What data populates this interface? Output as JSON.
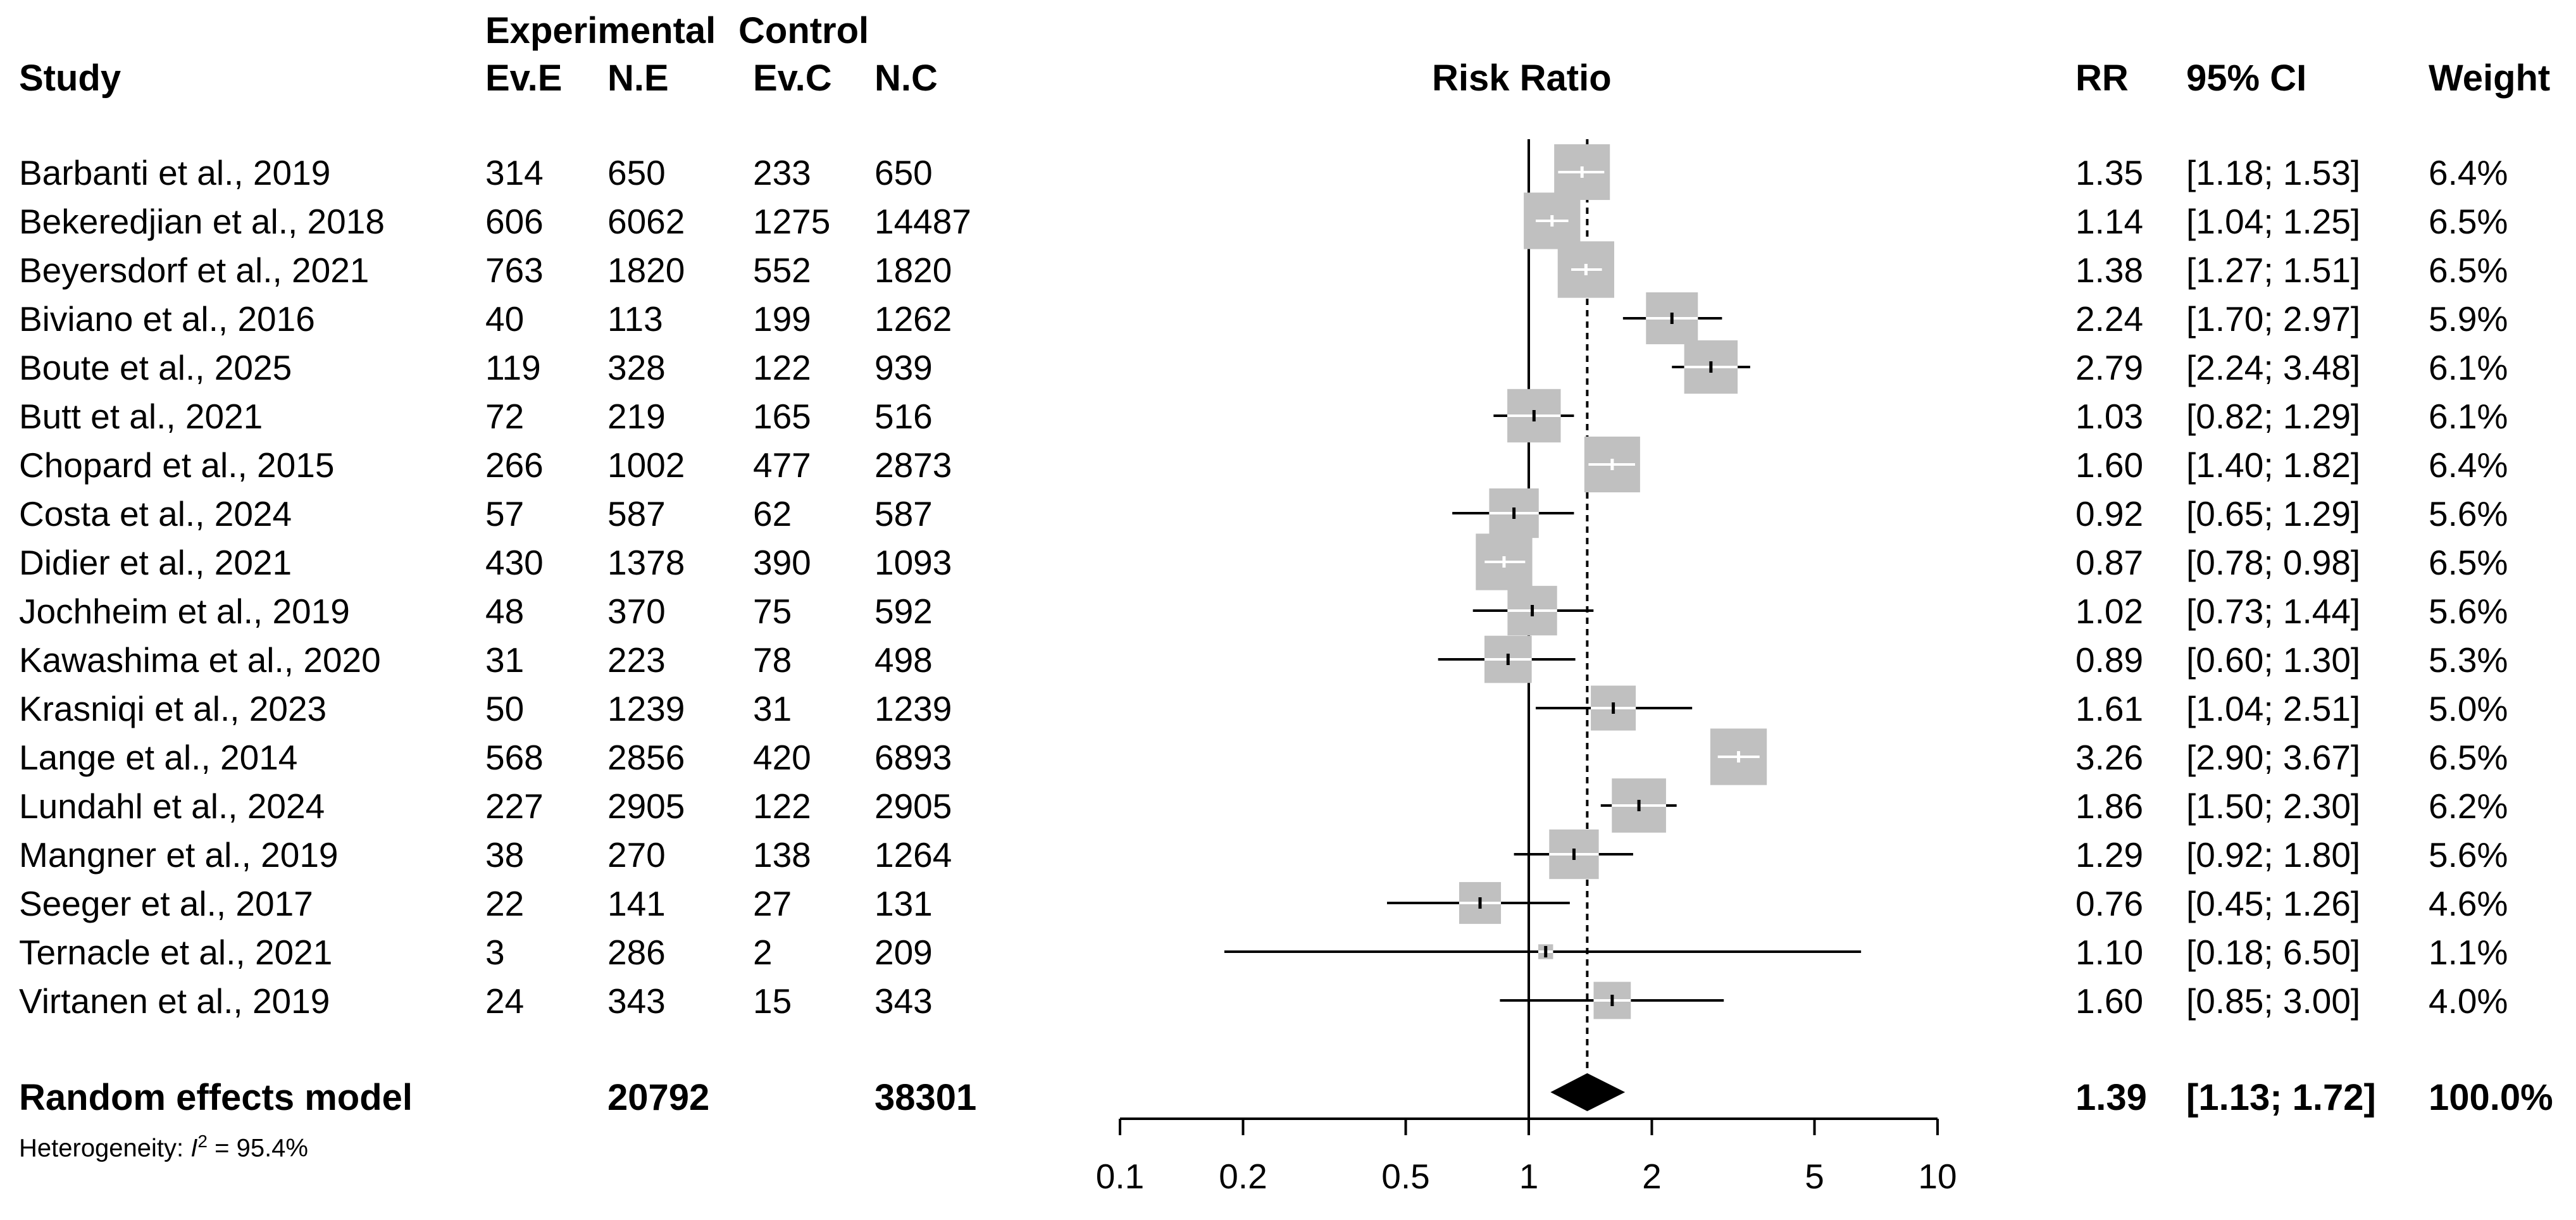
{
  "chart_data": {
    "type": "forest",
    "title": "Risk Ratio",
    "header": {
      "group_experimental": "Experimental",
      "group_control": "Control",
      "study": "Study",
      "ev_e": "Ev.E",
      "n_e": "N.E",
      "ev_c": "Ev.C",
      "n_c": "N.C",
      "rr": "RR",
      "ci": "95% CI",
      "weight": "Weight"
    },
    "xscale": "log",
    "xlim": [
      0.1,
      10
    ],
    "xticks": [
      0.1,
      0.2,
      0.5,
      1,
      2,
      5,
      10
    ],
    "xtick_labels": [
      "0.1",
      "0.2",
      "0.5",
      "1",
      "2",
      "5",
      "10"
    ],
    "reference_line": 1,
    "pooled_line": 1.39,
    "studies": [
      {
        "study": "Barbanti et al., 2019",
        "ev_e": "314",
        "n_e": "650",
        "ev_c": "233",
        "n_c": "650",
        "rr": 1.35,
        "lower": 1.18,
        "upper": 1.53,
        "weight": 6.4,
        "rr_text": "1.35",
        "ci_text": "[1.18; 1.53]",
        "weight_text": "6.4%"
      },
      {
        "study": "Bekeredjian et al., 2018",
        "ev_e": "606",
        "n_e": "6062",
        "ev_c": "1275",
        "n_c": "14487",
        "rr": 1.14,
        "lower": 1.04,
        "upper": 1.25,
        "weight": 6.5,
        "rr_text": "1.14",
        "ci_text": "[1.04; 1.25]",
        "weight_text": "6.5%"
      },
      {
        "study": "Beyersdorf et al., 2021",
        "ev_e": "763",
        "n_e": "1820",
        "ev_c": "552",
        "n_c": "1820",
        "rr": 1.38,
        "lower": 1.27,
        "upper": 1.51,
        "weight": 6.5,
        "rr_text": "1.38",
        "ci_text": "[1.27; 1.51]",
        "weight_text": "6.5%"
      },
      {
        "study": "Biviano et al., 2016",
        "ev_e": "40",
        "n_e": "113",
        "ev_c": "199",
        "n_c": "1262",
        "rr": 2.24,
        "lower": 1.7,
        "upper": 2.97,
        "weight": 5.9,
        "rr_text": "2.24",
        "ci_text": "[1.70; 2.97]",
        "weight_text": "5.9%"
      },
      {
        "study": "Boute et al., 2025",
        "ev_e": "119",
        "n_e": "328",
        "ev_c": "122",
        "n_c": "939",
        "rr": 2.79,
        "lower": 2.24,
        "upper": 3.48,
        "weight": 6.1,
        "rr_text": "2.79",
        "ci_text": "[2.24; 3.48]",
        "weight_text": "6.1%"
      },
      {
        "study": "Butt et al., 2021",
        "ev_e": "72",
        "n_e": "219",
        "ev_c": "165",
        "n_c": "516",
        "rr": 1.03,
        "lower": 0.82,
        "upper": 1.29,
        "weight": 6.1,
        "rr_text": "1.03",
        "ci_text": "[0.82; 1.29]",
        "weight_text": "6.1%"
      },
      {
        "study": "Chopard et al., 2015",
        "ev_e": "266",
        "n_e": "1002",
        "ev_c": "477",
        "n_c": "2873",
        "rr": 1.6,
        "lower": 1.4,
        "upper": 1.82,
        "weight": 6.4,
        "rr_text": "1.60",
        "ci_text": "[1.40; 1.82]",
        "weight_text": "6.4%"
      },
      {
        "study": "Costa et al., 2024",
        "ev_e": "57",
        "n_e": "587",
        "ev_c": "62",
        "n_c": "587",
        "rr": 0.92,
        "lower": 0.65,
        "upper": 1.29,
        "weight": 5.6,
        "rr_text": "0.92",
        "ci_text": "[0.65; 1.29]",
        "weight_text": "5.6%"
      },
      {
        "study": "Didier et al., 2021",
        "ev_e": "430",
        "n_e": "1378",
        "ev_c": "390",
        "n_c": "1093",
        "rr": 0.87,
        "lower": 0.78,
        "upper": 0.98,
        "weight": 6.5,
        "rr_text": "0.87",
        "ci_text": "[0.78; 0.98]",
        "weight_text": "6.5%"
      },
      {
        "study": "Jochheim et al., 2019",
        "ev_e": "48",
        "n_e": "370",
        "ev_c": "75",
        "n_c": "592",
        "rr": 1.02,
        "lower": 0.73,
        "upper": 1.44,
        "weight": 5.6,
        "rr_text": "1.02",
        "ci_text": "[0.73; 1.44]",
        "weight_text": "5.6%"
      },
      {
        "study": "Kawashima et al., 2020",
        "ev_e": "31",
        "n_e": "223",
        "ev_c": "78",
        "n_c": "498",
        "rr": 0.89,
        "lower": 0.6,
        "upper": 1.3,
        "weight": 5.3,
        "rr_text": "0.89",
        "ci_text": "[0.60; 1.30]",
        "weight_text": "5.3%"
      },
      {
        "study": "Krasniqi et al., 2023",
        "ev_e": "50",
        "n_e": "1239",
        "ev_c": "31",
        "n_c": "1239",
        "rr": 1.61,
        "lower": 1.04,
        "upper": 2.51,
        "weight": 5.0,
        "rr_text": "1.61",
        "ci_text": "[1.04; 2.51]",
        "weight_text": "5.0%"
      },
      {
        "study": "Lange et al., 2014",
        "ev_e": "568",
        "n_e": "2856",
        "ev_c": "420",
        "n_c": "6893",
        "rr": 3.26,
        "lower": 2.9,
        "upper": 3.67,
        "weight": 6.5,
        "rr_text": "3.26",
        "ci_text": "[2.90; 3.67]",
        "weight_text": "6.5%"
      },
      {
        "study": "Lundahl et al., 2024",
        "ev_e": "227",
        "n_e": "2905",
        "ev_c": "122",
        "n_c": "2905",
        "rr": 1.86,
        "lower": 1.5,
        "upper": 2.3,
        "weight": 6.2,
        "rr_text": "1.86",
        "ci_text": "[1.50; 2.30]",
        "weight_text": "6.2%"
      },
      {
        "study": "Mangner et al., 2019",
        "ev_e": "38",
        "n_e": "270",
        "ev_c": "138",
        "n_c": "1264",
        "rr": 1.29,
        "lower": 0.92,
        "upper": 1.8,
        "weight": 5.6,
        "rr_text": "1.29",
        "ci_text": "[0.92; 1.80]",
        "weight_text": "5.6%"
      },
      {
        "study": "Seeger et al., 2017",
        "ev_e": "22",
        "n_e": "141",
        "ev_c": "27",
        "n_c": "131",
        "rr": 0.76,
        "lower": 0.45,
        "upper": 1.26,
        "weight": 4.6,
        "rr_text": "0.76",
        "ci_text": "[0.45; 1.26]",
        "weight_text": "4.6%"
      },
      {
        "study": "Ternacle et al., 2021",
        "ev_e": "3",
        "n_e": "286",
        "ev_c": "2",
        "n_c": "209",
        "rr": 1.1,
        "lower": 0.18,
        "upper": 6.5,
        "weight": 1.1,
        "rr_text": "1.10",
        "ci_text": "[0.18; 6.50]",
        "weight_text": "1.1%"
      },
      {
        "study": "Virtanen et al., 2019",
        "ev_e": "24",
        "n_e": "343",
        "ev_c": "15",
        "n_c": "343",
        "rr": 1.6,
        "lower": 0.85,
        "upper": 3.0,
        "weight": 4.0,
        "rr_text": "1.60",
        "ci_text": "[0.85; 3.00]",
        "weight_text": "4.0%"
      }
    ],
    "pooled": {
      "label": "Random effects model",
      "n_e": "20792",
      "n_c": "38301",
      "rr": 1.39,
      "lower": 1.13,
      "upper": 1.72,
      "rr_text": "1.39",
      "ci_text": "[1.13; 1.72]",
      "weight_text": "100.0%"
    },
    "heterogeneity": {
      "prefix": "Heterogeneity: ",
      "symbol": "I",
      "superscript": "2",
      "value_text": " = 95.4%"
    }
  }
}
